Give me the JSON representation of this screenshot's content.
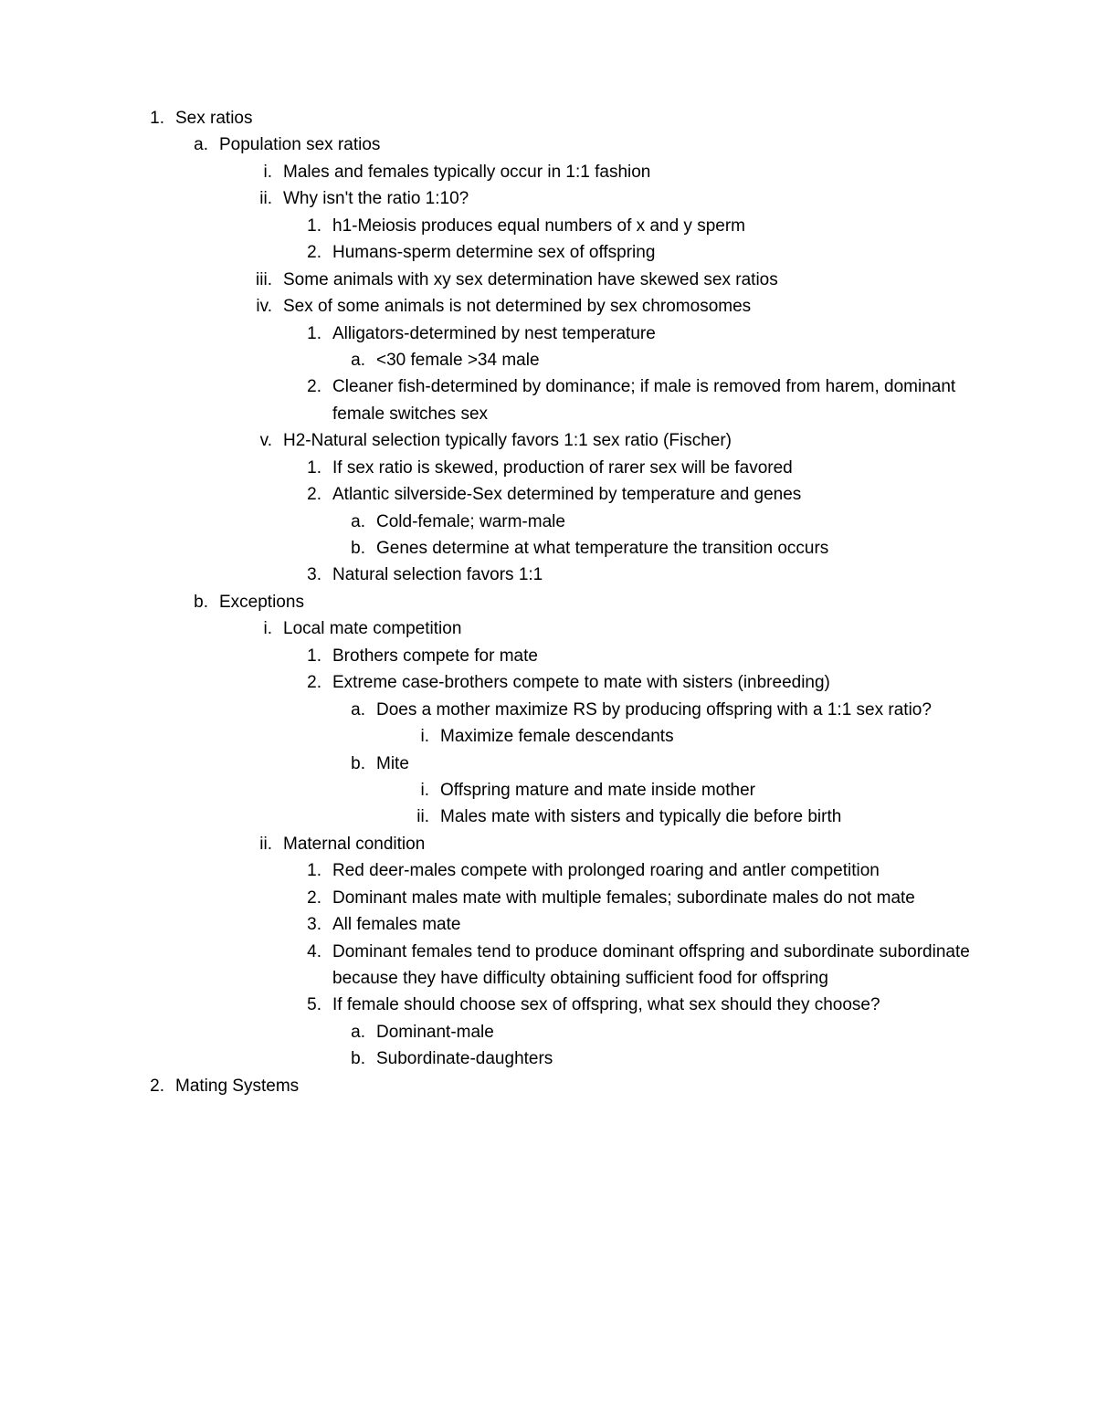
{
  "document": {
    "background_color": "#ffffff",
    "text_color": "#000000",
    "font_size_pt": 14,
    "font_family": "Arial",
    "line_height": 1.55
  },
  "outline": [
    {
      "level": 1,
      "marker": "1.",
      "text": "Sex ratios"
    },
    {
      "level": 2,
      "marker": "a.",
      "text": "Population sex ratios"
    },
    {
      "level": 3,
      "marker": "i.",
      "text": "Males and females typically occur in 1:1 fashion"
    },
    {
      "level": 3,
      "marker": "ii.",
      "text": "Why isn't the ratio 1:10?"
    },
    {
      "level": 4,
      "marker": "1.",
      "text": "h1-Meiosis produces equal numbers of x and y sperm"
    },
    {
      "level": 4,
      "marker": "2.",
      "text": "Humans-sperm determine sex of offspring"
    },
    {
      "level": 3,
      "marker": "iii.",
      "text": "Some animals with xy sex determination have skewed sex ratios"
    },
    {
      "level": 3,
      "marker": "iv.",
      "text": "Sex of some animals is not determined by sex chromosomes"
    },
    {
      "level": 4,
      "marker": "1.",
      "text": "Alligators-determined by nest temperature"
    },
    {
      "level": 5,
      "marker": "a.",
      "text": "<30 female >34 male"
    },
    {
      "level": 4,
      "marker": "2.",
      "text": "Cleaner fish-determined by dominance; if male is removed from harem, dominant female switches sex"
    },
    {
      "level": 3,
      "marker": "v.",
      "text": "H2-Natural selection typically favors 1:1 sex ratio (Fischer)"
    },
    {
      "level": 4,
      "marker": "1.",
      "text": "If sex ratio is skewed, production of rarer sex will be favored"
    },
    {
      "level": 4,
      "marker": "2.",
      "text": "Atlantic silverside-Sex determined by temperature and genes"
    },
    {
      "level": 5,
      "marker": "a.",
      "text": "Cold-female; warm-male"
    },
    {
      "level": 5,
      "marker": "b.",
      "text": "Genes determine at what temperature the transition occurs"
    },
    {
      "level": 4,
      "marker": "3.",
      "text": "Natural selection favors 1:1"
    },
    {
      "level": 2,
      "marker": "b.",
      "text": "Exceptions"
    },
    {
      "level": 3,
      "marker": "i.",
      "text": "Local mate competition"
    },
    {
      "level": 4,
      "marker": "1.",
      "text": "Brothers compete for mate"
    },
    {
      "level": 4,
      "marker": "2.",
      "text": "Extreme case-brothers compete to mate with sisters (inbreeding)"
    },
    {
      "level": 5,
      "marker": "a.",
      "text": "Does a mother maximize RS by producing offspring with a 1:1 sex ratio?"
    },
    {
      "level": 6,
      "marker": "i.",
      "text": "Maximize female descendants"
    },
    {
      "level": 5,
      "marker": "b.",
      "text": "Mite"
    },
    {
      "level": 6,
      "marker": "i.",
      "text": "Offspring mature and mate inside mother"
    },
    {
      "level": 6,
      "marker": "ii.",
      "text": "Males mate with sisters and typically die before birth"
    },
    {
      "level": 3,
      "marker": "ii.",
      "text": "Maternal condition"
    },
    {
      "level": 4,
      "marker": "1.",
      "text": "Red deer-males compete with prolonged roaring and antler competition"
    },
    {
      "level": 4,
      "marker": "2.",
      "text": "Dominant males mate with multiple females; subordinate males do not mate"
    },
    {
      "level": 4,
      "marker": "3.",
      "text": "All females mate"
    },
    {
      "level": 4,
      "marker": "4.",
      "text": "Dominant females tend to produce dominant offspring and subordinate subordinate because they have difficulty obtaining sufficient food for offspring"
    },
    {
      "level": 4,
      "marker": "5.",
      "text": "If female should choose sex of offspring, what sex should they choose?"
    },
    {
      "level": 5,
      "marker": "a.",
      "text": "Dominant-male"
    },
    {
      "level": 5,
      "marker": "b.",
      "text": "Subordinate-daughters"
    },
    {
      "level": 1,
      "marker": "2.",
      "text": "Mating Systems"
    }
  ]
}
